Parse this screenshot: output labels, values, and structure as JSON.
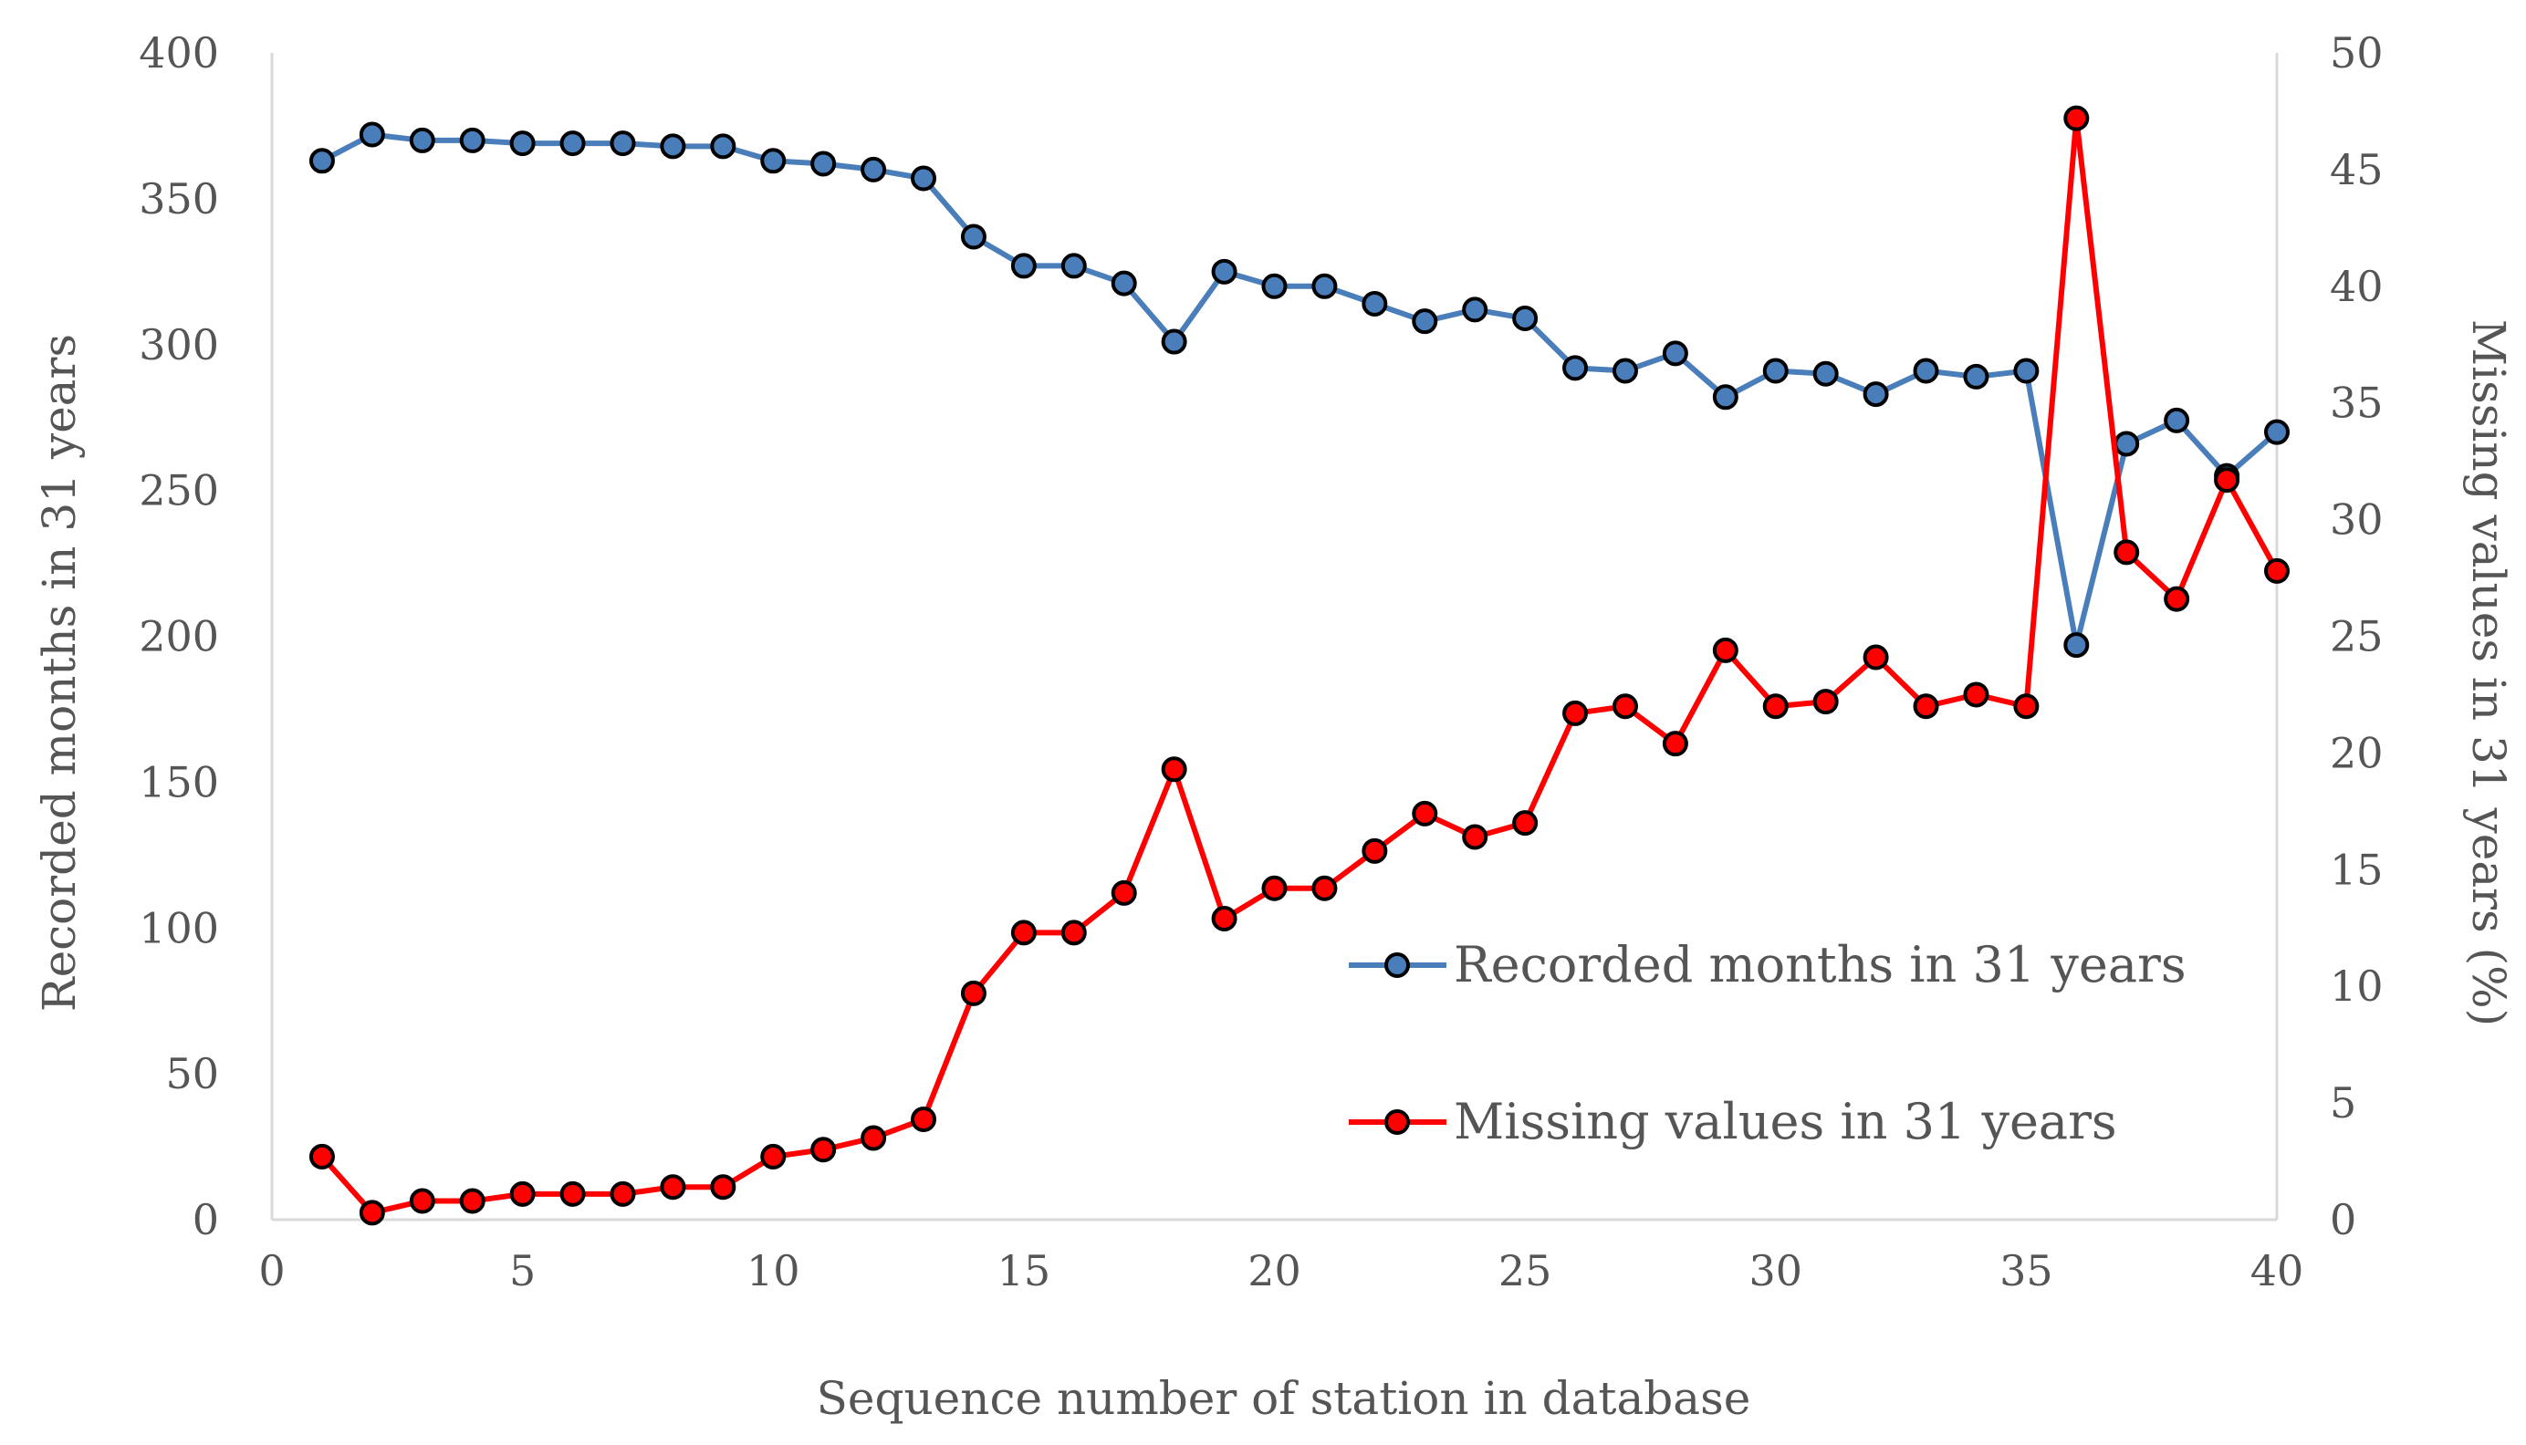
{
  "chart_data": {
    "type": "line",
    "title": "",
    "xlabel": "Sequence number of station in database",
    "ylabel_left": "Recorded months in 31 years",
    "ylabel_right": "Missing values in 31 years (%)",
    "xlim": [
      0,
      40
    ],
    "ylim_left": [
      0,
      400
    ],
    "ylim_right": [
      0,
      50
    ],
    "x_ticks": [
      0,
      5,
      10,
      15,
      20,
      25,
      30,
      35,
      40
    ],
    "y_left_ticks": [
      0,
      50,
      100,
      150,
      200,
      250,
      300,
      350,
      400
    ],
    "y_right_ticks": [
      0,
      5,
      10,
      15,
      20,
      25,
      30,
      35,
      40,
      45,
      50
    ],
    "grid": false,
    "legend_position": "lower-right",
    "x": [
      1,
      2,
      3,
      4,
      5,
      6,
      7,
      8,
      9,
      10,
      11,
      12,
      13,
      14,
      15,
      16,
      17,
      18,
      19,
      20,
      21,
      22,
      23,
      24,
      25,
      26,
      27,
      28,
      29,
      30,
      31,
      32,
      33,
      34,
      35,
      36,
      37,
      38,
      39,
      40
    ],
    "series": [
      {
        "name": "Recorded months in 31 years",
        "axis": "left",
        "color": "#4a7ebb",
        "values": [
          363,
          372,
          370,
          370,
          369,
          369,
          369,
          368,
          368,
          363,
          362,
          360,
          357,
          337,
          327,
          327,
          321,
          301,
          325,
          320,
          320,
          314,
          308,
          312,
          309,
          292,
          291,
          297,
          282,
          291,
          290,
          283,
          291,
          289,
          291,
          197,
          266,
          274,
          255,
          270
        ]
      },
      {
        "name": "Missing values in 31 years",
        "axis": "right",
        "color": "#ff0000",
        "values": [
          2.7,
          0.3,
          0.8,
          0.8,
          1.1,
          1.1,
          1.1,
          1.4,
          1.4,
          2.7,
          3.0,
          3.5,
          4.3,
          9.7,
          12.3,
          12.3,
          14.0,
          19.3,
          12.9,
          14.2,
          14.2,
          15.8,
          17.4,
          16.4,
          17.0,
          21.7,
          22.0,
          20.4,
          24.4,
          22.0,
          22.2,
          24.1,
          22.0,
          22.5,
          22.0,
          47.2,
          28.6,
          26.6,
          31.7,
          27.8
        ]
      }
    ]
  }
}
